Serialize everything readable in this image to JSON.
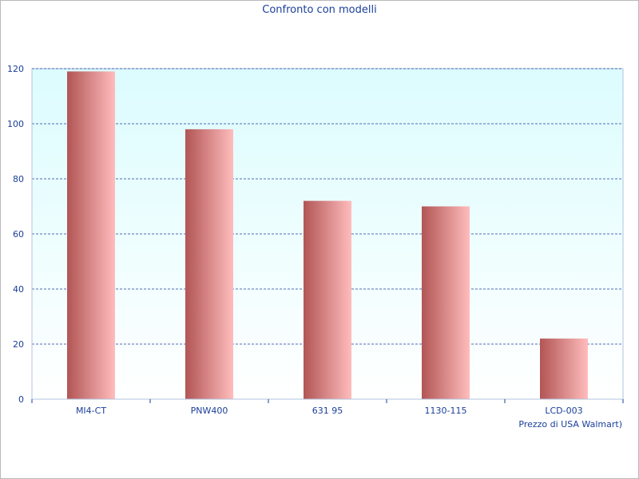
{
  "chart_data": {
    "type": "bar",
    "title": "Confronto con modelli",
    "xlabel": "Prezzo di USA Walmart)",
    "ylabel": "",
    "categories": [
      "MI4-CT",
      "PNW400",
      "631 95",
      "1130-115",
      "LCD-003"
    ],
    "values": [
      119,
      98,
      72,
      70,
      22
    ],
    "ylim": [
      0,
      120
    ],
    "yticks": [
      0,
      20,
      40,
      60,
      80,
      100,
      120
    ],
    "grid": true,
    "colors": {
      "plot_bg_top": "#dcfcfe",
      "plot_bg_bottom": "#ffffff",
      "bar_dark": "#b25555",
      "bar_light": "#ffbcbc",
      "grid": "#1a3e9a",
      "text": "#1a3e9a",
      "axis": "#b0c4de"
    }
  }
}
